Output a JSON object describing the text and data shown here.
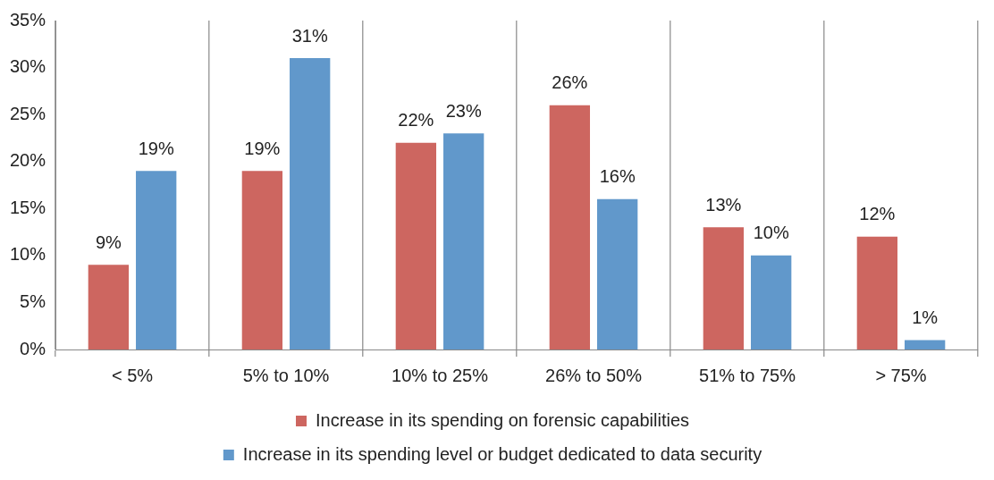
{
  "chart_data": {
    "type": "bar",
    "categories": [
      "< 5%",
      "5% to 10%",
      "10% to 25%",
      "26% to 50%",
      "51% to 75%",
      "> 75%"
    ],
    "series": [
      {
        "name": "Increase in its spending on forensic capabilities",
        "color": "#cd6660",
        "values": [
          9,
          19,
          22,
          26,
          13,
          12
        ],
        "value_labels": [
          "9%",
          "19%",
          "22%",
          "26%",
          "13%",
          "12%"
        ]
      },
      {
        "name": "Increase in its spending level or budget dedicated to data security",
        "color": "#6198cb",
        "values": [
          19,
          31,
          23,
          16,
          10,
          1
        ],
        "value_labels": [
          "19%",
          "31%",
          "23%",
          "16%",
          "10%",
          "1%"
        ]
      }
    ],
    "ylim": [
      0,
      35
    ],
    "yticks": [
      {
        "value": 0,
        "label": "0%"
      },
      {
        "value": 5,
        "label": "5%"
      },
      {
        "value": 10,
        "label": "10%"
      },
      {
        "value": 15,
        "label": "15%"
      },
      {
        "value": 20,
        "label": "20%"
      },
      {
        "value": 25,
        "label": "25%"
      },
      {
        "value": 30,
        "label": "30%"
      },
      {
        "value": 35,
        "label": "35%"
      }
    ],
    "grid": "x",
    "legend": "bottom"
  }
}
